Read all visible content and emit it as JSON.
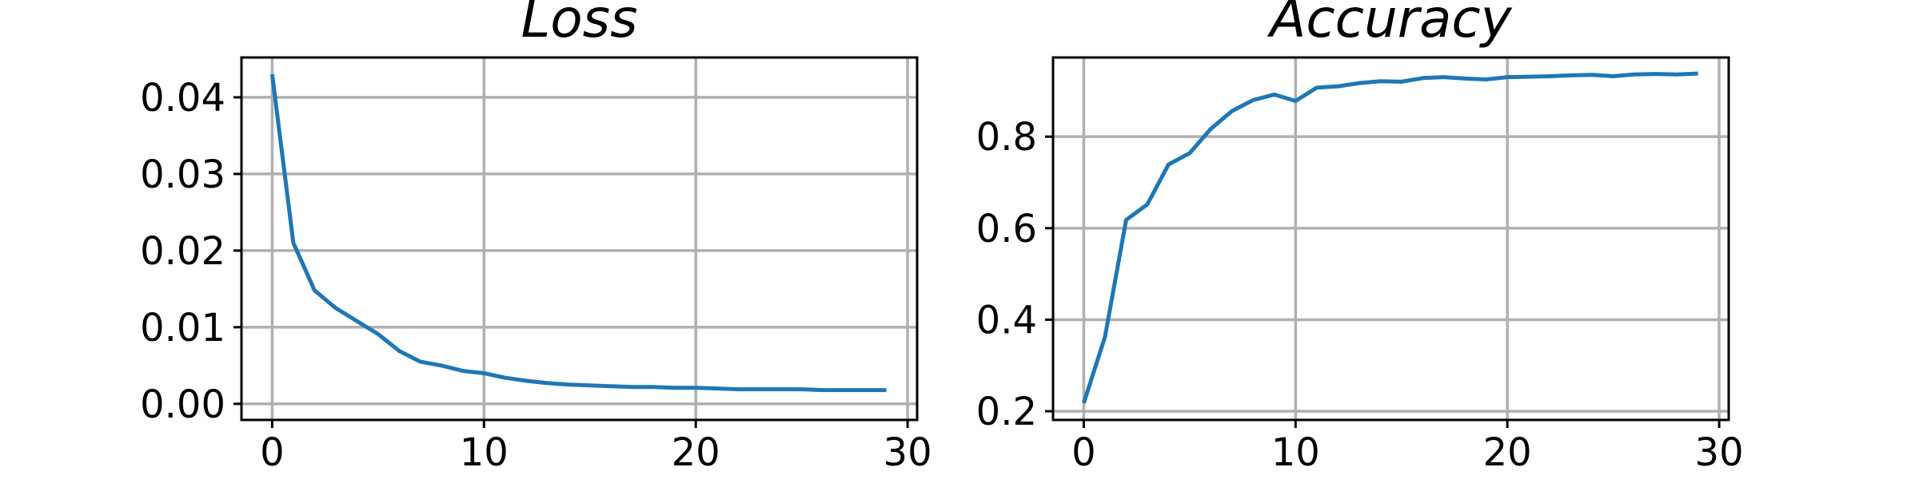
{
  "chart_data": [
    {
      "type": "line",
      "title": "Loss",
      "xlabel": "",
      "ylabel": "",
      "xlim": [
        -1.45,
        30.45
      ],
      "ylim": [
        -0.0021,
        0.0452
      ],
      "xticks": [
        0,
        10,
        20,
        30
      ],
      "xtick_labels": [
        "0",
        "10",
        "20",
        "30"
      ],
      "yticks": [
        0.0,
        0.01,
        0.02,
        0.03,
        0.04
      ],
      "ytick_labels": [
        "0.00",
        "0.01",
        "0.02",
        "0.03",
        "0.04"
      ],
      "grid": true,
      "series": [
        {
          "color": "#1f77b4",
          "x": [
            0,
            1,
            2,
            3,
            4,
            5,
            6,
            7,
            8,
            9,
            10,
            11,
            12,
            13,
            14,
            15,
            16,
            17,
            18,
            19,
            20,
            21,
            22,
            23,
            24,
            25,
            26,
            27,
            28,
            29
          ],
          "y": [
            0.043,
            0.021,
            0.0148,
            0.0125,
            0.0108,
            0.0091,
            0.0069,
            0.0055,
            0.005,
            0.0043,
            0.004,
            0.0034,
            0.003,
            0.0027,
            0.0025,
            0.0024,
            0.0023,
            0.0022,
            0.0022,
            0.0021,
            0.0021,
            0.002,
            0.0019,
            0.0019,
            0.0019,
            0.0019,
            0.0018,
            0.0018,
            0.0018,
            0.0018
          ]
        }
      ]
    },
    {
      "type": "line",
      "title": "Accuracy",
      "xlabel": "",
      "ylabel": "",
      "xlim": [
        -1.45,
        30.45
      ],
      "ylim": [
        0.181,
        0.973
      ],
      "xticks": [
        0,
        10,
        20,
        30
      ],
      "xtick_labels": [
        "0",
        "10",
        "20",
        "30"
      ],
      "yticks": [
        0.2,
        0.4,
        0.6,
        0.8
      ],
      "ytick_labels": [
        "0.2",
        "0.4",
        "0.6",
        "0.8"
      ],
      "grid": true,
      "series": [
        {
          "color": "#1f77b4",
          "x": [
            0,
            1,
            2,
            3,
            4,
            5,
            6,
            7,
            8,
            9,
            10,
            11,
            12,
            13,
            14,
            15,
            16,
            17,
            18,
            19,
            20,
            21,
            22,
            23,
            24,
            25,
            26,
            27,
            28,
            29
          ],
          "y": [
            0.218,
            0.362,
            0.618,
            0.652,
            0.739,
            0.764,
            0.817,
            0.856,
            0.88,
            0.892,
            0.878,
            0.907,
            0.91,
            0.917,
            0.921,
            0.92,
            0.928,
            0.93,
            0.927,
            0.925,
            0.93,
            0.931,
            0.932,
            0.934,
            0.935,
            0.932,
            0.936,
            0.937,
            0.936,
            0.938
          ]
        }
      ]
    }
  ]
}
